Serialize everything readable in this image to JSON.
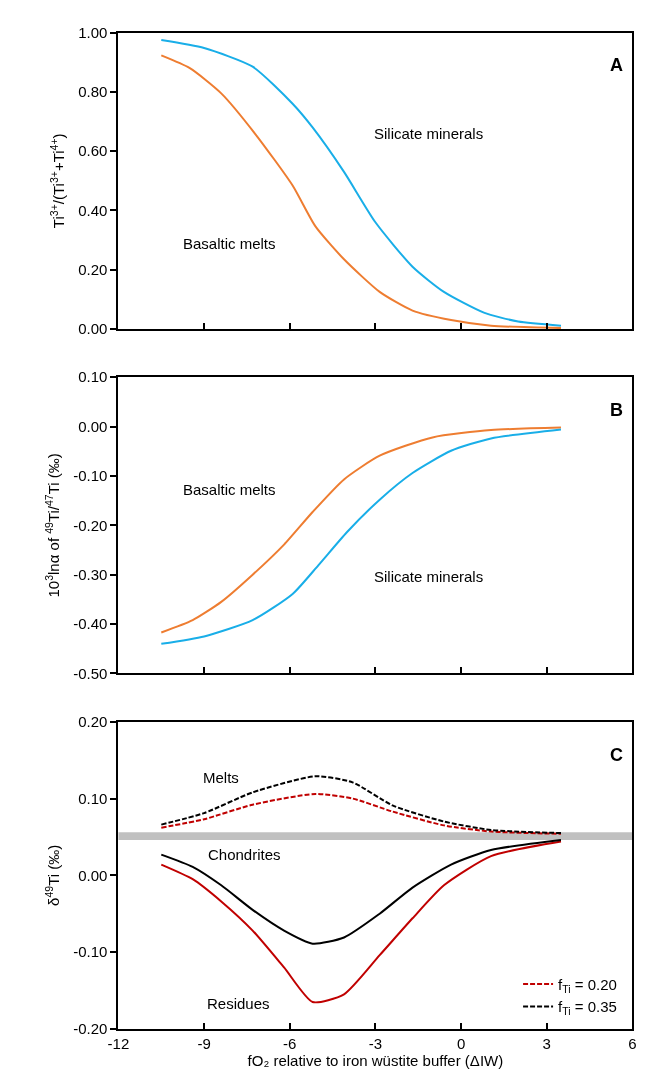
{
  "chart_data": [
    {
      "type": "line",
      "ylabel": "Ti$^{3+}$/(Ti$^{3+}$+Ti$^{4+}$)",
      "xlim": [
        -12,
        6
      ],
      "xticks": [
        -12,
        -9,
        -6,
        -3,
        0,
        3,
        6
      ],
      "ylim": [
        0,
        1
      ],
      "yticks": [
        {
          "value": 0,
          "label": "0.00"
        },
        {
          "value": 0.2,
          "label": "0.20"
        },
        {
          "value": 0.4,
          "label": "0.40"
        },
        {
          "value": 0.6,
          "label": "0.60"
        },
        {
          "value": 0.8,
          "label": "0.80"
        },
        {
          "value": 1,
          "label": "1.00"
        }
      ],
      "tick_labels": "y",
      "grid": false,
      "legend": false,
      "marker": "none",
      "series": [
        {
          "color": "#19aee8",
          "x": [
            -10.5,
            -9,
            -7.3,
            -5.9,
            -5.2,
            -4.1,
            -3,
            -1.7,
            -0.6,
            0.8,
            2.0,
            3.5
          ],
          "values": [
            0.975,
            0.948,
            0.885,
            0.76,
            0.68,
            0.53,
            0.36,
            0.21,
            0.125,
            0.055,
            0.025,
            0.011
          ]
        },
        {
          "color": "#ee7d31",
          "x": [
            -10.5,
            -9.5,
            -8.4,
            -7.2,
            -5.9,
            -5.1,
            -4.1,
            -2.85,
            -1.7,
            -0.35,
            1.05,
            3.5
          ],
          "values": [
            0.923,
            0.88,
            0.795,
            0.657,
            0.484,
            0.346,
            0.235,
            0.125,
            0.062,
            0.03,
            0.011,
            0.003
          ]
        }
      ],
      "annotations": [
        "A",
        "Silicate minerals",
        "Basaltic melts"
      ]
    },
    {
      "type": "line",
      "ylabel": "10$^{3}$lnα of $^{49}$Ti/$^{47}$Ti (‰)",
      "xlim": [
        -12,
        6
      ],
      "xticks": [
        -12,
        -9,
        -6,
        -3,
        0,
        3,
        6
      ],
      "ylim": [
        -0.5,
        0.1
      ],
      "yticks": [
        {
          "value": -0.5,
          "label": "-0.50"
        },
        {
          "value": -0.4,
          "label": "-0.40"
        },
        {
          "value": -0.3,
          "label": "-0.30"
        },
        {
          "value": -0.2,
          "label": "-0.20"
        },
        {
          "value": -0.1,
          "label": "-0.10"
        },
        {
          "value": 0,
          "label": "0.00"
        },
        {
          "value": 0.1,
          "label": "0.10"
        }
      ],
      "tick_labels": "y",
      "grid": false,
      "legend": false,
      "marker": "none",
      "series": [
        {
          "color": "#ee7d31",
          "x": [
            -10.5,
            -9.4,
            -8.4,
            -7.3,
            -6.2,
            -5.2,
            -4.1,
            -2.85,
            -1.0,
            1.05,
            3.5
          ],
          "values": [
            -0.417,
            -0.392,
            -0.355,
            -0.3,
            -0.239,
            -0.173,
            -0.107,
            -0.059,
            -0.022,
            -0.007,
            -0.002
          ]
        },
        {
          "color": "#19aee8",
          "x": [
            -10.5,
            -9,
            -7.3,
            -5.9,
            -5.0,
            -4.0,
            -2.85,
            -1.7,
            -0.35,
            1.05,
            3.5
          ],
          "values": [
            -0.44,
            -0.425,
            -0.392,
            -0.339,
            -0.281,
            -0.214,
            -0.148,
            -0.094,
            -0.049,
            -0.024,
            -0.006
          ]
        }
      ],
      "annotations": [
        "B",
        "Basaltic melts",
        "Silicate minerals"
      ]
    },
    {
      "type": "line",
      "xlabel": "fO₂ relative to iron wüstite buffer (ΔIW)",
      "ylabel": "δ$^{49}$Ti (‰)",
      "xlim": [
        -12,
        6
      ],
      "xticks": [
        -12,
        -9,
        -6,
        -3,
        0,
        3,
        6
      ],
      "ylim": [
        -0.2,
        0.2
      ],
      "yticks": [
        {
          "value": -0.2,
          "label": "-0.20"
        },
        {
          "value": -0.1,
          "label": "-0.10"
        },
        {
          "value": 0,
          "label": "0.00"
        },
        {
          "value": 0.1,
          "label": "0.10"
        },
        {
          "value": 0.2,
          "label": "0.20"
        }
      ],
      "grid": false,
      "legend": "bottom right",
      "marker": "none",
      "bands": [
        {
          "axis": "y",
          "from": 0.046,
          "to": 0.056,
          "color": "#c0c0c0"
        }
      ],
      "series": [
        {
          "name": "f$_{Ti}$ = 0.20",
          "color": "#c00000",
          "line_style": "dashed",
          "x": [
            -10.5,
            -9,
            -7.3,
            -5.1,
            -3.8,
            -2.4,
            -0.6,
            1.05,
            3.5
          ],
          "values": [
            0.062,
            0.073,
            0.092,
            0.106,
            0.1,
            0.083,
            0.065,
            0.057,
            0.054
          ]
        },
        {
          "color": "#c00000",
          "line_style": "solid",
          "x": [
            -10.5,
            -9.4,
            -8.4,
            -7.3,
            -6.2,
            -5.2,
            -4.1,
            -2.85,
            -1.7,
            -0.6,
            1.05,
            3.5
          ],
          "values": [
            0.014,
            -0.005,
            -0.034,
            -0.072,
            -0.12,
            -0.165,
            -0.155,
            -0.104,
            -0.056,
            -0.013,
            0.025,
            0.044
          ]
        },
        {
          "name": "f$_{Ti}$ = 0.35",
          "color": "#000000",
          "line_style": "dashed",
          "x": [
            -10.5,
            -9,
            -7.3,
            -5.1,
            -3.8,
            -2.4,
            -0.6,
            1.05,
            3.5
          ],
          "values": [
            0.066,
            0.081,
            0.108,
            0.129,
            0.121,
            0.091,
            0.07,
            0.059,
            0.055
          ]
        },
        {
          "color": "#000000",
          "line_style": "solid",
          "x": [
            -10.5,
            -9.4,
            -8.4,
            -7.3,
            -6.2,
            -5.2,
            -4.1,
            -2.85,
            -1.7,
            -0.35,
            1.05,
            3.5
          ],
          "values": [
            0.027,
            0.011,
            -0.013,
            -0.045,
            -0.072,
            -0.089,
            -0.081,
            -0.05,
            -0.016,
            0.014,
            0.033,
            0.046
          ]
        }
      ],
      "annotations": [
        "C",
        "Melts",
        "Chondrites",
        "Residues"
      ]
    }
  ]
}
